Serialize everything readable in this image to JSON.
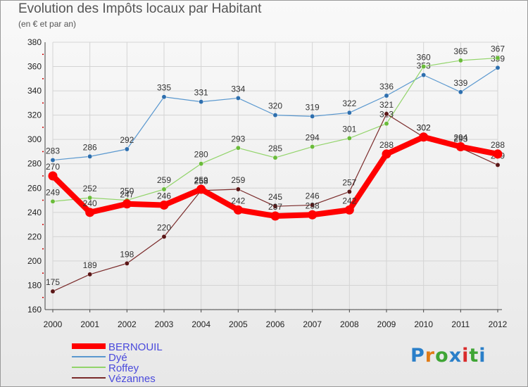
{
  "page": {
    "title": "Evolution des Impôts locaux par Habitant",
    "subtitle": "(en € et par an)",
    "logo": "Proxiti"
  },
  "colors": {
    "grid": "#d4d4d4",
    "axis": "#444444",
    "redtick": "#cc0000",
    "legend_text": "#4a4adc"
  },
  "chart_data": {
    "type": "line",
    "title": "Evolution des Impôts locaux par Habitant",
    "subtitle": "(en € et par an)",
    "xlabel": "",
    "ylabel": "",
    "x": [
      "2000",
      "2001",
      "2002",
      "2003",
      "2004",
      "2005",
      "2006",
      "2007",
      "2008",
      "2009",
      "2010",
      "2011",
      "2012"
    ],
    "ylim": [
      160,
      380
    ],
    "yticks": [
      160,
      180,
      200,
      220,
      240,
      260,
      280,
      300,
      320,
      340,
      360,
      380
    ],
    "grid": true,
    "legend_position": "bottom-left",
    "series": [
      {
        "name": "Dyé",
        "color": "#5a98cf",
        "marker": "#2e6fae",
        "width": 1.2,
        "values": [
          283,
          286,
          292,
          335,
          331,
          334,
          320,
          319,
          322,
          336,
          353,
          339,
          359
        ]
      },
      {
        "name": "Roffey",
        "color": "#92d46a",
        "marker": "#6abb3a",
        "width": 1.2,
        "values": [
          249,
          252,
          250,
          259,
          280,
          293,
          285,
          294,
          301,
          313,
          360,
          365,
          367
        ]
      },
      {
        "name": "Vézannes",
        "color": "#7a2a2a",
        "marker": "#5a1616",
        "width": 1.2,
        "values": [
          175,
          189,
          198,
          220,
          258,
          259,
          245,
          246,
          257,
          321,
          302,
          293,
          279
        ]
      },
      {
        "name": "BERNOUIL",
        "color": "#ff0000",
        "marker": "#ff0000",
        "width": 8,
        "values": [
          270,
          240,
          247,
          246,
          259,
          242,
          237,
          238,
          242,
          288,
          302,
          294,
          288
        ]
      }
    ]
  }
}
